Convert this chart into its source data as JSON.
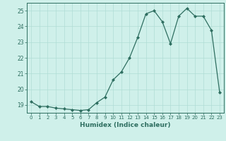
{
  "x": [
    0,
    1,
    2,
    3,
    4,
    5,
    6,
    7,
    8,
    9,
    10,
    11,
    12,
    13,
    14,
    15,
    16,
    17,
    18,
    19,
    20,
    21,
    22,
    23
  ],
  "y": [
    19.2,
    18.9,
    18.9,
    18.8,
    18.75,
    18.7,
    18.65,
    18.7,
    19.15,
    19.5,
    20.6,
    21.1,
    22.0,
    23.3,
    24.8,
    25.0,
    24.3,
    22.9,
    24.65,
    25.15,
    24.65,
    24.65,
    23.75,
    19.8
  ],
  "title": "",
  "xlabel": "Humidex (Indice chaleur)",
  "ylabel": "",
  "ylim": [
    18.5,
    25.5
  ],
  "xlim": [
    -0.5,
    23.5
  ],
  "yticks": [
    19,
    20,
    21,
    22,
    23,
    24,
    25
  ],
  "xticks": [
    0,
    1,
    2,
    3,
    4,
    5,
    6,
    7,
    8,
    9,
    10,
    11,
    12,
    13,
    14,
    15,
    16,
    17,
    18,
    19,
    20,
    21,
    22,
    23
  ],
  "line_color": "#2e6e60",
  "marker_color": "#2e6e60",
  "bg_color": "#cff0ea",
  "grid_color": "#b0ddd5"
}
